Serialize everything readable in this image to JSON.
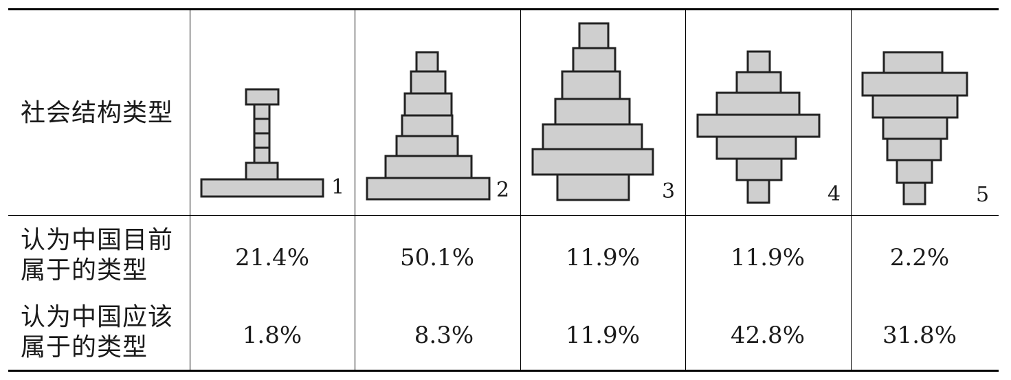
{
  "table": {
    "header_label": "社会结构类型",
    "row_current_label": "认为中国目前\n属于的类型",
    "row_should_label": "认为中国应该\n属于的类型",
    "types": [
      {
        "number": "1",
        "current": "21.4%",
        "should": "1.8%"
      },
      {
        "number": "2",
        "current": "50.1%",
        "should": "8.3%"
      },
      {
        "number": "3",
        "current": "11.9%",
        "should": "11.9%"
      },
      {
        "number": "4",
        "current": "11.9%",
        "should": "42.8%"
      },
      {
        "number": "5",
        "current": "2.2%",
        "should": "31.8%"
      }
    ]
  },
  "colors": {
    "pyramid_fill": "#cfcfcf",
    "pyramid_stroke": "#222222",
    "rule": "#000000"
  }
}
